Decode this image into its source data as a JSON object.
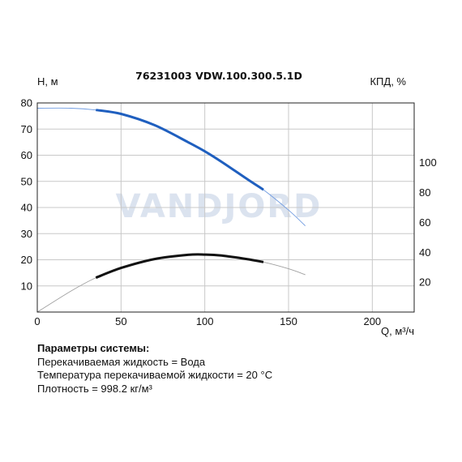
{
  "chart_data": {
    "type": "line",
    "title": "76231003 VDW.100.300.5.1D",
    "watermark": "VANDJORD",
    "xlabel": "Q, м³/ч",
    "ylabel_left": "Н, м",
    "ylabel_right": "КПД, %",
    "xlim": [
      0,
      225
    ],
    "ylim_left": [
      0,
      80
    ],
    "ylim_right": [
      0,
      140
    ],
    "xticks": [
      "0",
      "50",
      "100",
      "150",
      "200"
    ],
    "yticks_left": [
      "10",
      "20",
      "30",
      "40",
      "50",
      "60",
      "70",
      "80"
    ],
    "yticks_right": [
      "20",
      "40",
      "60",
      "80",
      "100"
    ],
    "grid": true,
    "colors": {
      "head": "#1f5fbf",
      "efficiency": "#111111",
      "thin": "#a0a0a0",
      "grid": "#c8c8c8"
    },
    "series": [
      {
        "axis": "left",
        "color": "#1f5fbf",
        "x": [
          0,
          20,
          35,
          50,
          70,
          90,
          100,
          110,
          125,
          135,
          150,
          160
        ],
        "y": [
          78,
          78,
          77.3,
          75.8,
          71.5,
          65,
          61.5,
          57.5,
          51,
          46.8,
          39,
          33
        ],
        "operating_range": [
          35,
          135
        ]
      },
      {
        "axis": "right",
        "color": "#111111",
        "x": [
          0,
          20,
          35,
          50,
          70,
          90,
          100,
          110,
          125,
          135,
          150,
          160
        ],
        "y": [
          0,
          14,
          23,
          29.5,
          35.5,
          38.3,
          38.5,
          37.8,
          35.5,
          33.5,
          29,
          25
        ],
        "operating_range": [
          35,
          135
        ]
      }
    ]
  },
  "params": {
    "heading": "Параметры системы:",
    "lines": [
      "Перекачиваемая жидкость = Вода",
      "Температура перекачиваемой жидкости = 20 °C",
      "Плотность = 998.2 кг/м³"
    ]
  }
}
